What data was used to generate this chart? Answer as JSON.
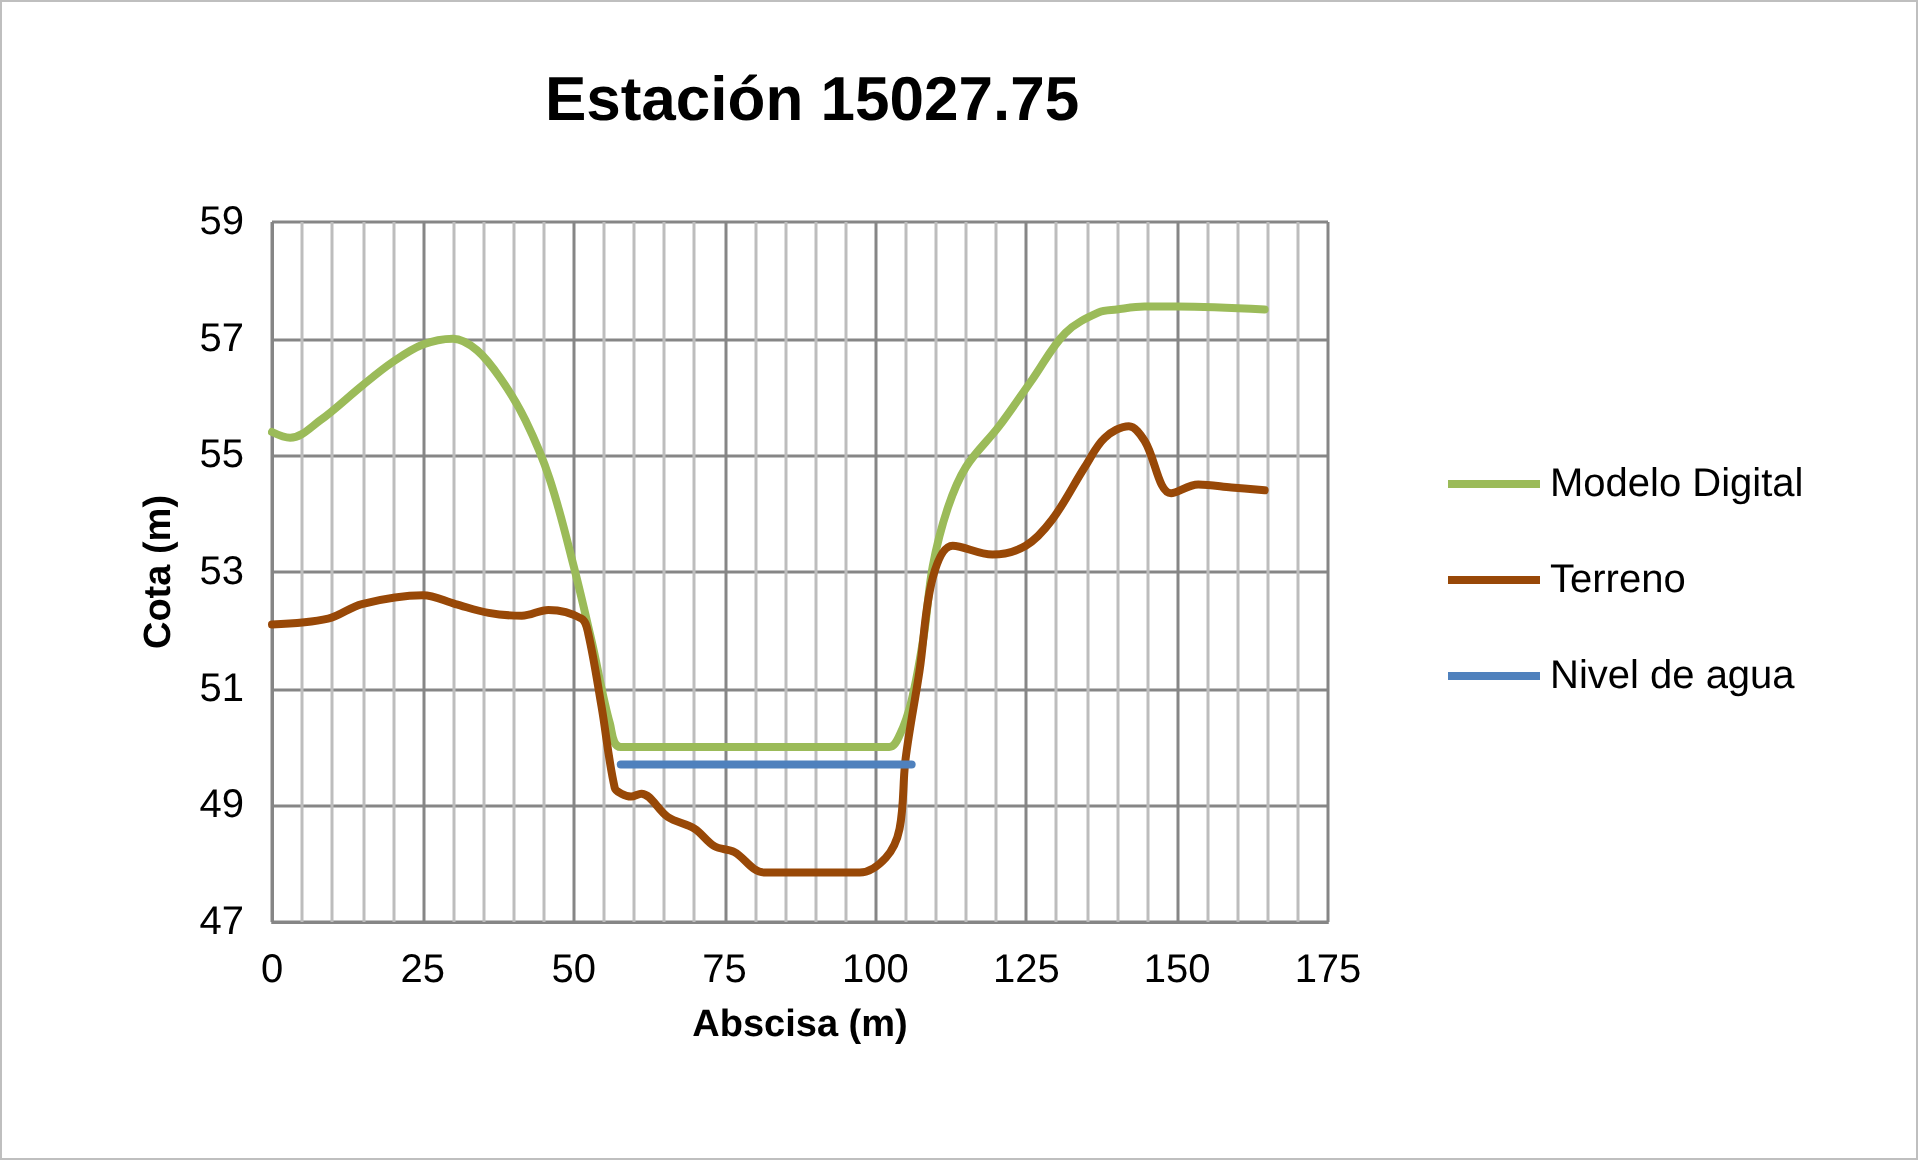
{
  "chart_data": {
    "type": "line",
    "title": "Estación 15027.75",
    "xlabel": "Abscisa (m)",
    "ylabel": "Cota (m)",
    "xlim": [
      0,
      175
    ],
    "xticks": [
      0,
      25,
      50,
      75,
      100,
      125,
      150,
      175
    ],
    "ylim": [
      47,
      59
    ],
    "yticks": [
      47,
      49,
      51,
      53,
      55,
      57,
      59
    ],
    "grid": true,
    "legend": "right",
    "marker": "none",
    "line_style": "solid",
    "series": [
      {
        "name": "Modelo Digital",
        "color": "#9bbb59",
        "x": [
          0,
          3,
          8,
          15,
          20,
          25,
          30,
          34,
          38,
          42,
          46,
          50,
          53,
          56,
          57.8,
          102.3,
          104,
          106,
          108,
          109.5,
          112,
          115,
          120.5,
          126,
          131.5,
          137,
          140,
          144.6,
          150,
          164.5
        ],
        "values": [
          55.4,
          55.3,
          55.6,
          56.2,
          56.6,
          56.9,
          57.0,
          56.8,
          56.3,
          55.6,
          54.6,
          53.1,
          51.8,
          50.4,
          50.0,
          50.0,
          50.2,
          50.8,
          51.9,
          53.1,
          54.1,
          54.8,
          55.5,
          56.3,
          57.1,
          57.45,
          57.5,
          57.55,
          57.55,
          57.5
        ]
      },
      {
        "name": "Terreno",
        "color": "#984807",
        "x": [
          0,
          9.3,
          14.9,
          25,
          30.4,
          35.9,
          41.4,
          45.8,
          51.3,
          52.4,
          54.6,
          56.8,
          57.9,
          59.5,
          61.2,
          65.6,
          70,
          73.3,
          76.6,
          81.5,
          93,
          97.4,
          101.7,
          104,
          105,
          107.3,
          109.5,
          112.8,
          119.4,
          124.9,
          129.3,
          134.7,
          138,
          142,
          144.6,
          149,
          153.5,
          159,
          164.5
        ],
        "values": [
          52.1,
          52.2,
          52.45,
          52.6,
          52.45,
          52.3,
          52.25,
          52.35,
          52.2,
          51.95,
          50.7,
          49.3,
          49.2,
          49.15,
          49.2,
          48.8,
          48.6,
          48.3,
          48.2,
          47.85,
          47.85,
          47.85,
          48.1,
          48.6,
          49.8,
          51.3,
          52.9,
          53.45,
          53.3,
          53.45,
          53.9,
          54.8,
          55.3,
          55.5,
          55.25,
          54.35,
          54.5,
          54.45,
          54.4
        ]
      },
      {
        "name": "Nivel de agua",
        "color": "#4f81bd",
        "x": [
          57.8,
          106
        ],
        "values": [
          49.7,
          49.7
        ]
      }
    ]
  }
}
